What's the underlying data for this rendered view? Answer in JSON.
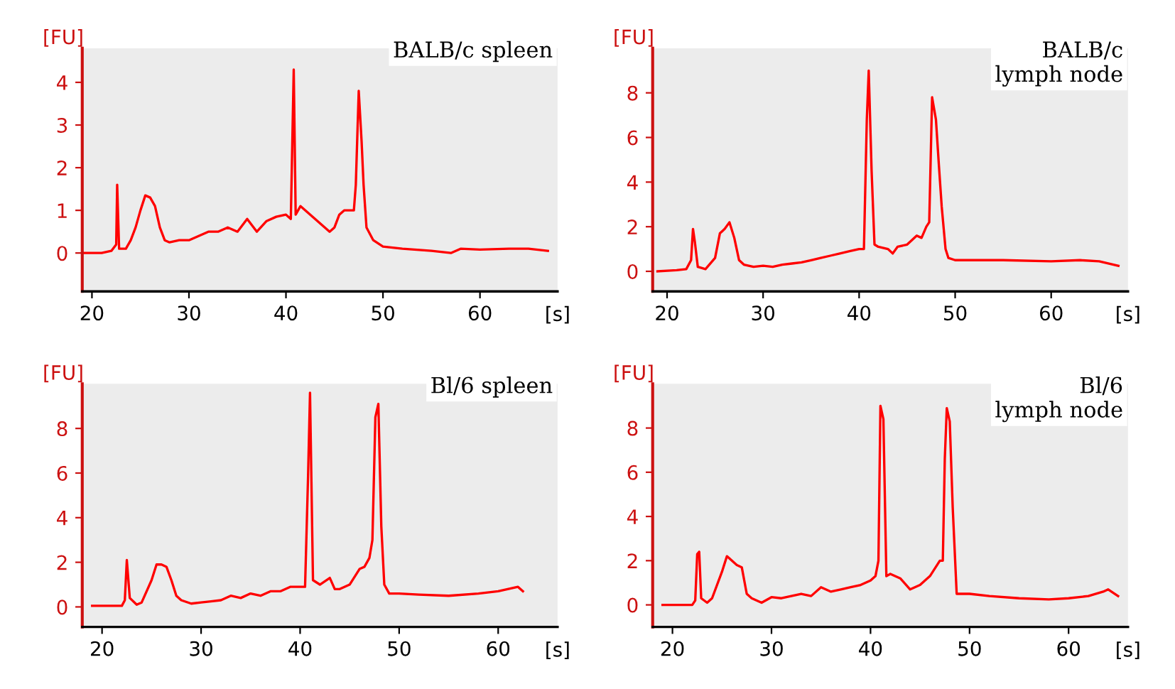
{
  "chart_data": [
    {
      "type": "line",
      "title": "BALB/c spleen",
      "xlabel": "[s]",
      "ylabel": "[FU]",
      "xlim": [
        19,
        68
      ],
      "ylim": [
        -0.9,
        4.8
      ],
      "xticks": [
        20,
        30,
        40,
        50,
        60
      ],
      "yticks": [
        0,
        1,
        2,
        3,
        4
      ],
      "grid": false,
      "series": [
        {
          "color": "#ff0000",
          "x": [
            19,
            21,
            22,
            22.5,
            22.6,
            22.8,
            23.5,
            24,
            24.5,
            25,
            25.5,
            26,
            26.5,
            27,
            27.5,
            28,
            29,
            30,
            31,
            32,
            33,
            34,
            35,
            36,
            37,
            38,
            39,
            40,
            40.5,
            40.8,
            41.0,
            41.5,
            42,
            43,
            44,
            44.5,
            45,
            45.5,
            46,
            47,
            47.2,
            47.5,
            47.8,
            48,
            48.3,
            49,
            50,
            52,
            55,
            57,
            58,
            60,
            63,
            65,
            67
          ],
          "values": [
            0,
            0,
            0.05,
            0.2,
            1.6,
            0.1,
            0.1,
            0.3,
            0.6,
            1.0,
            1.35,
            1.3,
            1.1,
            0.6,
            0.3,
            0.25,
            0.3,
            0.3,
            0.4,
            0.5,
            0.5,
            0.6,
            0.5,
            0.8,
            0.5,
            0.75,
            0.85,
            0.9,
            0.8,
            4.3,
            0.9,
            1.1,
            1.0,
            0.8,
            0.6,
            0.5,
            0.6,
            0.9,
            1.0,
            1.0,
            1.6,
            3.8,
            2.6,
            1.6,
            0.6,
            0.3,
            0.15,
            0.1,
            0.05,
            0.0,
            0.1,
            0.08,
            0.1,
            0.1,
            0.05
          ]
        }
      ]
    },
    {
      "type": "line",
      "title": "BALB/c\nlymph node",
      "xlabel": "[s]",
      "ylabel": "[FU]",
      "xlim": [
        18.5,
        68
      ],
      "ylim": [
        -0.9,
        10
      ],
      "xticks": [
        20,
        30,
        40,
        50,
        60
      ],
      "yticks": [
        0,
        2,
        4,
        6,
        8
      ],
      "grid": false,
      "series": [
        {
          "color": "#ff0000",
          "x": [
            19,
            21,
            22,
            22.5,
            22.7,
            22.9,
            23.2,
            24,
            25,
            25.5,
            26,
            26.5,
            27,
            27.5,
            28,
            29,
            30,
            31,
            32,
            33,
            34,
            35,
            36,
            37,
            38,
            39,
            40,
            40.5,
            40.8,
            41.0,
            41.3,
            41.6,
            42,
            43,
            43.5,
            44,
            45,
            46,
            46.5,
            47,
            47.3,
            47.6,
            48,
            48.3,
            48.6,
            49,
            49.3,
            50,
            55,
            60,
            63,
            65,
            67
          ],
          "values": [
            0,
            0.05,
            0.1,
            0.5,
            1.9,
            1.3,
            0.2,
            0.1,
            0.6,
            1.7,
            1.9,
            2.2,
            1.5,
            0.5,
            0.3,
            0.2,
            0.25,
            0.2,
            0.3,
            0.35,
            0.4,
            0.5,
            0.6,
            0.7,
            0.8,
            0.9,
            1.0,
            1.0,
            6.8,
            9.0,
            4.5,
            1.2,
            1.1,
            1.0,
            0.8,
            1.1,
            1.2,
            1.6,
            1.5,
            2.0,
            2.2,
            7.8,
            6.8,
            4.8,
            2.9,
            1.0,
            0.6,
            0.5,
            0.5,
            0.45,
            0.5,
            0.45,
            0.25
          ]
        }
      ]
    },
    {
      "type": "line",
      "title": "Bl/6 spleen",
      "xlabel": "[s]",
      "ylabel": "[FU]",
      "xlim": [
        18,
        66
      ],
      "ylim": [
        -0.9,
        10
      ],
      "xticks": [
        20,
        30,
        40,
        50,
        60
      ],
      "yticks": [
        0,
        2,
        4,
        6,
        8
      ],
      "grid": false,
      "series": [
        {
          "color": "#ff0000",
          "x": [
            19,
            21,
            22,
            22.3,
            22.5,
            22.8,
            23.5,
            24,
            25,
            25.5,
            26,
            26.5,
            27,
            27.5,
            28,
            29,
            30,
            31,
            32,
            33,
            34,
            35,
            36,
            37,
            38,
            39,
            40,
            40.5,
            40.8,
            41,
            41.3,
            42,
            43,
            43.5,
            44,
            45,
            46,
            46.5,
            47,
            47.3,
            47.6,
            47.9,
            48.2,
            48.5,
            49,
            50,
            52,
            55,
            58,
            60,
            62,
            62.5
          ],
          "values": [
            0.05,
            0.05,
            0.05,
            0.3,
            2.1,
            0.4,
            0.1,
            0.2,
            1.2,
            1.9,
            1.9,
            1.8,
            1.2,
            0.5,
            0.3,
            0.15,
            0.2,
            0.25,
            0.3,
            0.5,
            0.4,
            0.6,
            0.5,
            0.7,
            0.7,
            0.9,
            0.9,
            0.9,
            5.8,
            9.6,
            1.2,
            1.0,
            1.3,
            0.8,
            0.8,
            1.0,
            1.7,
            1.8,
            2.2,
            3.0,
            8.5,
            9.1,
            3.6,
            1.0,
            0.6,
            0.6,
            0.55,
            0.5,
            0.6,
            0.7,
            0.9,
            0.7
          ]
        }
      ]
    },
    {
      "type": "line",
      "title": "Bl/6\nlymph node",
      "xlabel": "[s]",
      "ylabel": "[FU]",
      "xlim": [
        18,
        66
      ],
      "ylim": [
        -1,
        10
      ],
      "xticks": [
        20,
        30,
        40,
        50,
        60
      ],
      "yticks": [
        0,
        2,
        4,
        6,
        8
      ],
      "grid": false,
      "series": [
        {
          "color": "#ff0000",
          "x": [
            19,
            21,
            22,
            22.3,
            22.5,
            22.7,
            22.9,
            23.5,
            24,
            25,
            25.5,
            26,
            26.5,
            27,
            27.5,
            28,
            29,
            30,
            31,
            32,
            33,
            34,
            35,
            36,
            37,
            38,
            39,
            40,
            40.5,
            40.8,
            41,
            41.3,
            41.6,
            42,
            43,
            44,
            45,
            46,
            47,
            47.3,
            47.5,
            47.7,
            48,
            48.3,
            48.7,
            50,
            52,
            55,
            58,
            60,
            62,
            63.5,
            64,
            65
          ],
          "values": [
            0,
            0,
            0,
            0.2,
            2.3,
            2.4,
            0.3,
            0.1,
            0.3,
            1.5,
            2.2,
            2.0,
            1.8,
            1.7,
            0.5,
            0.3,
            0.1,
            0.35,
            0.3,
            0.4,
            0.5,
            0.4,
            0.8,
            0.6,
            0.7,
            0.8,
            0.9,
            1.1,
            1.3,
            2.0,
            9.0,
            8.4,
            1.3,
            1.4,
            1.2,
            0.7,
            0.9,
            1.3,
            2.0,
            2.0,
            6.6,
            8.9,
            8.3,
            4.4,
            0.5,
            0.5,
            0.4,
            0.3,
            0.25,
            0.3,
            0.4,
            0.6,
            0.7,
            0.4
          ]
        }
      ]
    }
  ]
}
